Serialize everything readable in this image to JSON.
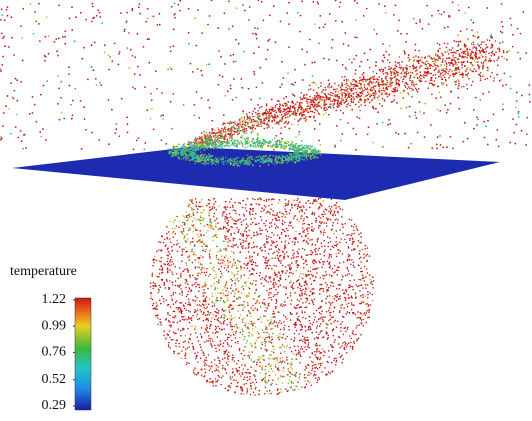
{
  "colorbar": {
    "title": "temperature",
    "range": [
      0.29,
      1.22
    ],
    "ticks": [
      1.22,
      0.99,
      0.76,
      0.52,
      0.29
    ]
  }
}
